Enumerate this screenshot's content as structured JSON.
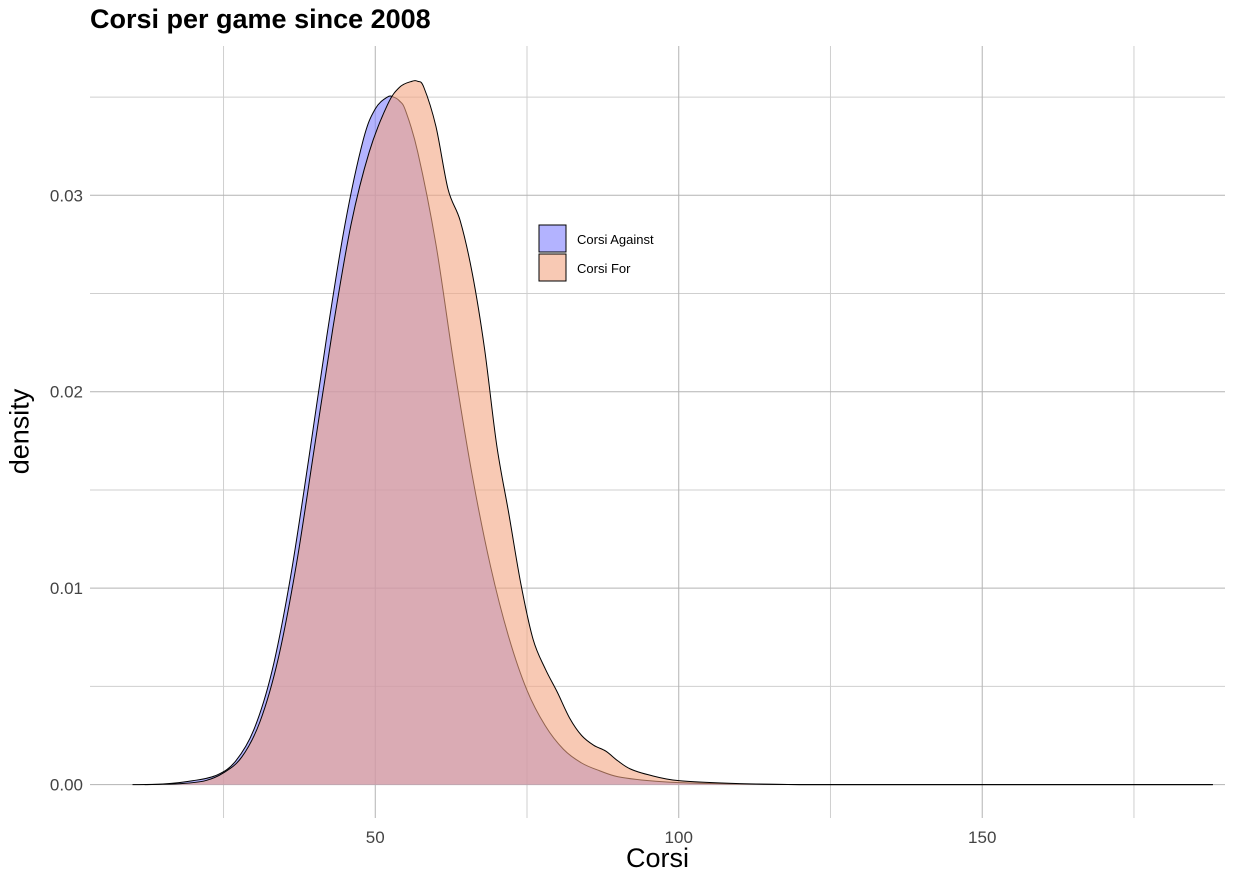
{
  "chart_data": {
    "type": "area",
    "title": "Corsi per game since 2008",
    "xlabel": "Corsi",
    "ylabel": "density",
    "xlim": [
      3,
      190
    ],
    "ylim": [
      -0.0017,
      0.0376
    ],
    "x_ticks": [
      50,
      100,
      150
    ],
    "x_tick_labels": [
      "50",
      "100",
      "150"
    ],
    "x_minor_ticks": [
      25,
      75,
      125,
      175
    ],
    "y_ticks": [
      0.0,
      0.01,
      0.02,
      0.03
    ],
    "y_tick_labels": [
      "0.00",
      "0.01",
      "0.02",
      "0.03"
    ],
    "y_minor_ticks": [
      0.005,
      0.015,
      0.025,
      0.035
    ],
    "grid": true,
    "legend_position": "inside top-center",
    "series": [
      {
        "name": "Corsi Against",
        "color": "#8080ff",
        "x": [
          10,
          15,
          20,
          24,
          27,
          30,
          33,
          36,
          39,
          42,
          45,
          48,
          50,
          52,
          53,
          54,
          55,
          57,
          60,
          63,
          66,
          69,
          72,
          75,
          78,
          81,
          84,
          87,
          90,
          95,
          100,
          110,
          120,
          130,
          140,
          150,
          160,
          170,
          180,
          188
        ],
        "values": [
          0.0,
          3e-05,
          0.0002,
          0.0005,
          0.0012,
          0.0028,
          0.0058,
          0.0105,
          0.0165,
          0.0228,
          0.0285,
          0.0328,
          0.0344,
          0.035,
          0.035,
          0.0348,
          0.0343,
          0.0322,
          0.0275,
          0.0213,
          0.0157,
          0.0111,
          0.0075,
          0.0048,
          0.003,
          0.0018,
          0.0011,
          0.0007,
          0.0004,
          0.0002,
          0.0001,
          3e-05,
          0.0,
          0.0,
          0.0,
          0.0,
          0.0,
          0.0,
          0.0,
          0.0
        ]
      },
      {
        "name": "Corsi For",
        "color": "#f4a582",
        "x": [
          12,
          18,
          22,
          25,
          28,
          31,
          34,
          37,
          40,
          43,
          46,
          49,
          52,
          54,
          56,
          57,
          58,
          60,
          62,
          64,
          66,
          68,
          70,
          72,
          74,
          76,
          78,
          80,
          82,
          84,
          86,
          88,
          90,
          92,
          95,
          100,
          110,
          120,
          130,
          140,
          150,
          160,
          170,
          180,
          188
        ],
        "values": [
          0.0,
          5e-05,
          0.0002,
          0.0006,
          0.0014,
          0.0032,
          0.0064,
          0.0112,
          0.0172,
          0.0232,
          0.0285,
          0.0322,
          0.0346,
          0.0355,
          0.0358,
          0.0358,
          0.0355,
          0.0335,
          0.0303,
          0.0287,
          0.026,
          0.0222,
          0.0173,
          0.0138,
          0.0102,
          0.0074,
          0.0059,
          0.0047,
          0.0034,
          0.0025,
          0.002,
          0.0017,
          0.0012,
          0.0008,
          0.0005,
          0.0002,
          5e-05,
          0.0,
          0.0,
          0.0,
          0.0,
          0.0,
          0.0,
          0.0,
          0.0
        ]
      }
    ]
  }
}
